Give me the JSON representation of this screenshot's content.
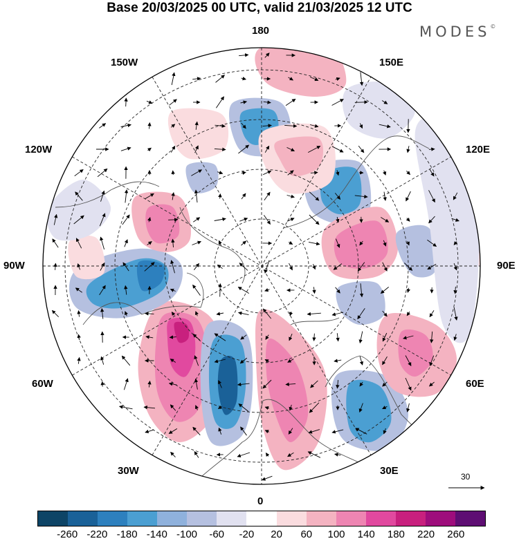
{
  "title": "Base 20/03/2025 00 UTC, valid 21/03/2025 12 UTC",
  "logo": "MODES",
  "logo_mark": "©",
  "longitudes": {
    "lon_180": "180",
    "lon_150W": "150W",
    "lon_150E": "150E",
    "lon_120W": "120W",
    "lon_120E": "120E",
    "lon_90W": "90W",
    "lon_90E": "90E",
    "lon_60W": "60W",
    "lon_60E": "60E",
    "lon_30W": "30W",
    "lon_30E": "30E",
    "lon_0": "0"
  },
  "reference_vector": "30",
  "colorbar": {
    "colors": [
      "#0d4466",
      "#1a6198",
      "#2d80be",
      "#4b9fd2",
      "#8fb1dc",
      "#b5c0e0",
      "#e1e1f0",
      "#ffffff",
      "#fadcdf",
      "#f4b3c1",
      "#ee85b2",
      "#e1499f",
      "#c8207e",
      "#9e0d7c",
      "#5e0e73"
    ],
    "labels": [
      "-260",
      "-220",
      "-180",
      "-140",
      "-100",
      "-60",
      "-20",
      "20",
      "60",
      "100",
      "140",
      "180",
      "220",
      "260"
    ]
  },
  "blobs": [
    {
      "c": "#f4b3c1",
      "pts": [
        [
          230,
          440
        ],
        [
          300,
          455
        ],
        [
          325,
          520
        ],
        [
          310,
          600
        ],
        [
          260,
          640
        ],
        [
          215,
          600
        ],
        [
          200,
          520
        ]
      ]
    },
    {
      "c": "#ee85b2",
      "pts": [
        [
          238,
          455
        ],
        [
          285,
          462
        ],
        [
          300,
          520
        ],
        [
          288,
          590
        ],
        [
          255,
          610
        ],
        [
          228,
          570
        ],
        [
          225,
          500
        ]
      ]
    },
    {
      "c": "#e1499f",
      "pts": [
        [
          245,
          463
        ],
        [
          275,
          466
        ],
        [
          282,
          510
        ],
        [
          268,
          545
        ],
        [
          248,
          530
        ],
        [
          242,
          490
        ]
      ]
    },
    {
      "c": "#c8207e",
      "pts": [
        [
          252,
          468
        ],
        [
          270,
          470
        ],
        [
          272,
          490
        ],
        [
          258,
          495
        ]
      ]
    },
    {
      "c": "#b5c0e0",
      "pts": [
        [
          300,
          470
        ],
        [
          355,
          480
        ],
        [
          365,
          560
        ],
        [
          350,
          630
        ],
        [
          305,
          640
        ],
        [
          290,
          560
        ]
      ]
    },
    {
      "c": "#4b9fd2",
      "pts": [
        [
          310,
          490
        ],
        [
          348,
          495
        ],
        [
          355,
          560
        ],
        [
          340,
          615
        ],
        [
          312,
          612
        ],
        [
          302,
          550
        ]
      ]
    },
    {
      "c": "#1a6198",
      "pts": [
        [
          320,
          520
        ],
        [
          340,
          522
        ],
        [
          342,
          580
        ],
        [
          325,
          600
        ],
        [
          315,
          560
        ]
      ]
    },
    {
      "c": "#f4b3c1",
      "pts": [
        [
          375,
          450
        ],
        [
          420,
          470
        ],
        [
          470,
          540
        ],
        [
          460,
          640
        ],
        [
          410,
          680
        ],
        [
          380,
          620
        ],
        [
          370,
          520
        ]
      ]
    },
    {
      "c": "#ee85b2",
      "pts": [
        [
          390,
          490
        ],
        [
          430,
          530
        ],
        [
          445,
          600
        ],
        [
          420,
          640
        ],
        [
          398,
          600
        ],
        [
          385,
          540
        ]
      ]
    },
    {
      "c": "#b5c0e0",
      "pts": [
        [
          490,
          540
        ],
        [
          560,
          545
        ],
        [
          590,
          600
        ],
        [
          560,
          650
        ],
        [
          500,
          640
        ],
        [
          480,
          590
        ]
      ]
    },
    {
      "c": "#4b9fd2",
      "pts": [
        [
          505,
          555
        ],
        [
          550,
          560
        ],
        [
          565,
          610
        ],
        [
          535,
          640
        ],
        [
          505,
          620
        ]
      ]
    },
    {
      "c": "#f4b3c1",
      "pts": [
        [
          560,
          455
        ],
        [
          630,
          470
        ],
        [
          660,
          520
        ],
        [
          630,
          570
        ],
        [
          570,
          565
        ],
        [
          545,
          510
        ]
      ]
    },
    {
      "c": "#ee85b2",
      "pts": [
        [
          580,
          480
        ],
        [
          615,
          485
        ],
        [
          625,
          520
        ],
        [
          600,
          545
        ],
        [
          578,
          525
        ]
      ]
    },
    {
      "c": "#b5c0e0",
      "pts": [
        [
          110,
          390
        ],
        [
          200,
          360
        ],
        [
          260,
          380
        ],
        [
          250,
          430
        ],
        [
          180,
          460
        ],
        [
          110,
          445
        ]
      ]
    },
    {
      "c": "#4b9fd2",
      "pts": [
        [
          130,
          410
        ],
        [
          200,
          375
        ],
        [
          240,
          385
        ],
        [
          235,
          420
        ],
        [
          180,
          445
        ],
        [
          135,
          440
        ]
      ]
    },
    {
      "c": "#2d80be",
      "pts": [
        [
          200,
          380
        ],
        [
          235,
          383
        ],
        [
          232,
          410
        ],
        [
          205,
          420
        ]
      ]
    },
    {
      "c": "#f4b3c1",
      "pts": [
        [
          195,
          285
        ],
        [
          260,
          285
        ],
        [
          275,
          345
        ],
        [
          240,
          365
        ],
        [
          200,
          345
        ]
      ]
    },
    {
      "c": "#ee85b2",
      "pts": [
        [
          215,
          300
        ],
        [
          250,
          300
        ],
        [
          258,
          340
        ],
        [
          228,
          352
        ],
        [
          212,
          330
        ]
      ]
    },
    {
      "c": "#b5c0e0",
      "pts": [
        [
          335,
          150
        ],
        [
          405,
          148
        ],
        [
          420,
          200
        ],
        [
          390,
          225
        ],
        [
          345,
          215
        ]
      ]
    },
    {
      "c": "#4b9fd2",
      "pts": [
        [
          350,
          162
        ],
        [
          395,
          160
        ],
        [
          400,
          195
        ],
        [
          370,
          210
        ],
        [
          352,
          195
        ]
      ]
    },
    {
      "c": "#b5c0e0",
      "pts": [
        [
          445,
          245
        ],
        [
          520,
          235
        ],
        [
          535,
          300
        ],
        [
          500,
          325
        ],
        [
          450,
          305
        ]
      ]
    },
    {
      "c": "#4b9fd2",
      "pts": [
        [
          470,
          250
        ],
        [
          515,
          245
        ],
        [
          520,
          295
        ],
        [
          490,
          310
        ],
        [
          465,
          290
        ]
      ]
    },
    {
      "c": "#f4b3c1",
      "pts": [
        [
          470,
          330
        ],
        [
          550,
          300
        ],
        [
          575,
          360
        ],
        [
          545,
          400
        ],
        [
          480,
          395
        ]
      ]
    },
    {
      "c": "#ee85b2",
      "pts": [
        [
          488,
          340
        ],
        [
          545,
          320
        ],
        [
          560,
          365
        ],
        [
          530,
          388
        ],
        [
          490,
          380
        ]
      ]
    },
    {
      "c": "#b5c0e0",
      "pts": [
        [
          490,
          415
        ],
        [
          545,
          410
        ],
        [
          555,
          455
        ],
        [
          520,
          470
        ],
        [
          492,
          450
        ]
      ]
    },
    {
      "c": "#f4b3c1",
      "pts": [
        [
          375,
          70
        ],
        [
          470,
          60
        ],
        [
          500,
          120
        ],
        [
          455,
          140
        ],
        [
          385,
          120
        ]
      ]
    },
    {
      "c": "#fadcdf",
      "pts": [
        [
          380,
          190
        ],
        [
          470,
          185
        ],
        [
          480,
          260
        ],
        [
          420,
          280
        ],
        [
          385,
          245
        ]
      ]
    },
    {
      "c": "#f4b3c1",
      "pts": [
        [
          400,
          205
        ],
        [
          460,
          200
        ],
        [
          462,
          240
        ],
        [
          425,
          255
        ],
        [
          405,
          232
        ]
      ]
    },
    {
      "c": "#b5c0e0",
      "pts": [
        [
          575,
          335
        ],
        [
          620,
          330
        ],
        [
          630,
          390
        ],
        [
          600,
          400
        ],
        [
          578,
          370
        ]
      ]
    },
    {
      "c": "#fadcdf",
      "pts": [
        [
          650,
          290
        ],
        [
          690,
          295
        ],
        [
          695,
          380
        ],
        [
          660,
          380
        ]
      ]
    },
    {
      "c": "#fadcdf",
      "pts": [
        [
          250,
          160
        ],
        [
          320,
          165
        ],
        [
          325,
          215
        ],
        [
          275,
          230
        ],
        [
          248,
          200
        ]
      ]
    },
    {
      "c": "#fadcdf",
      "pts": [
        [
          100,
          350
        ],
        [
          140,
          345
        ],
        [
          150,
          395
        ],
        [
          110,
          400
        ]
      ]
    },
    {
      "c": "#e1e1f0",
      "pts": [
        [
          600,
          190
        ],
        [
          640,
          180
        ],
        [
          690,
          300
        ],
        [
          680,
          480
        ],
        [
          640,
          470
        ],
        [
          620,
          320
        ]
      ]
    },
    {
      "c": "#e1e1f0",
      "pts": [
        [
          70,
          300
        ],
        [
          120,
          260
        ],
        [
          160,
          300
        ],
        [
          130,
          340
        ],
        [
          80,
          345
        ]
      ]
    },
    {
      "c": "#e1e1f0",
      "pts": [
        [
          500,
          130
        ],
        [
          560,
          120
        ],
        [
          600,
          160
        ],
        [
          560,
          200
        ],
        [
          505,
          180
        ]
      ]
    },
    {
      "c": "#b5c0e0",
      "pts": [
        [
          270,
          240
        ],
        [
          310,
          238
        ],
        [
          312,
          270
        ],
        [
          280,
          278
        ]
      ]
    }
  ]
}
